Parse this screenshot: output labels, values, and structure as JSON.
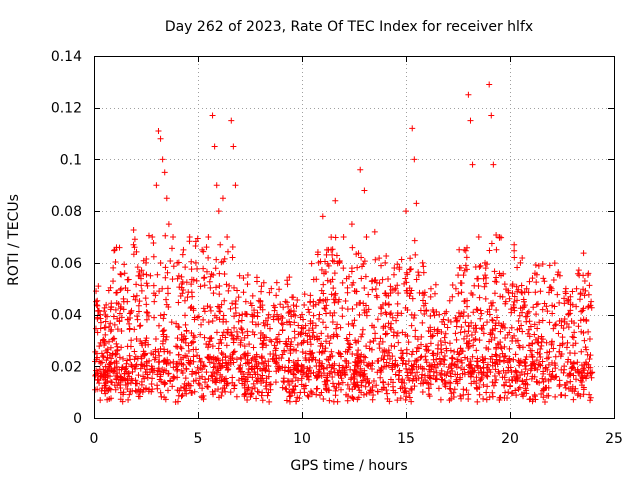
{
  "chart_data": {
    "type": "scatter",
    "title": "Day 262 of 2023, Rate Of TEC Index for receiver hlfx",
    "xlabel": "GPS time / hours",
    "ylabel": "ROTI / TECUs",
    "xlim": [
      0,
      25
    ],
    "ylim": [
      0,
      0.14
    ],
    "x_ticks": [
      0,
      5,
      10,
      15,
      20,
      25
    ],
    "x_tick_labels": [
      "0",
      "5",
      "10",
      "15",
      "20",
      "25"
    ],
    "y_ticks": [
      0,
      0.02,
      0.04,
      0.06,
      0.08,
      0.1,
      0.12,
      0.14
    ],
    "y_tick_labels": [
      "0",
      "0.02",
      "0.04",
      "0.06",
      "0.08",
      "0.1",
      "0.12",
      "0.14"
    ],
    "grid": true,
    "marker": "+",
    "color": "#ff0000",
    "series": [
      {
        "name": "ROTI",
        "x": [
          0.1,
          0.3,
          0.5,
          0.8,
          1.0,
          1.3,
          1.6,
          1.9,
          2.2,
          2.5,
          2.8,
          3.0,
          3.1,
          3.2,
          3.3,
          3.4,
          3.5,
          3.6,
          3.8,
          4.0,
          4.3,
          4.6,
          4.9,
          5.2,
          5.5,
          5.7,
          5.8,
          5.9,
          6.0,
          6.2,
          6.4,
          6.6,
          6.7,
          6.8,
          7.0,
          7.3,
          7.6,
          8.0,
          8.4,
          8.8,
          9.2,
          9.6,
          10.0,
          10.4,
          10.8,
          11.0,
          11.2,
          11.6,
          11.8,
          12.0,
          12.4,
          12.8,
          13.0,
          13.1,
          13.5,
          14.0,
          14.5,
          15.0,
          15.3,
          15.4,
          15.5,
          15.8,
          16.2,
          16.6,
          17.0,
          17.4,
          17.8,
          18.0,
          18.1,
          18.2,
          18.5,
          18.8,
          19.0,
          19.1,
          19.2,
          19.5,
          19.8,
          20.2,
          20.5,
          20.8,
          21.2,
          21.6,
          22.0,
          22.4,
          22.8,
          23.2,
          23.6,
          23.9
        ],
        "y": [
          0.045,
          0.04,
          0.035,
          0.042,
          0.065,
          0.05,
          0.045,
          0.067,
          0.055,
          0.06,
          0.07,
          0.09,
          0.111,
          0.108,
          0.1,
          0.095,
          0.085,
          0.075,
          0.07,
          0.06,
          0.065,
          0.07,
          0.06,
          0.065,
          0.07,
          0.117,
          0.105,
          0.09,
          0.08,
          0.085,
          0.07,
          0.115,
          0.105,
          0.09,
          0.055,
          0.045,
          0.04,
          0.045,
          0.04,
          0.04,
          0.045,
          0.04,
          0.04,
          0.045,
          0.06,
          0.078,
          0.065,
          0.084,
          0.06,
          0.07,
          0.075,
          0.096,
          0.088,
          0.07,
          0.072,
          0.06,
          0.05,
          0.08,
          0.112,
          0.1,
          0.083,
          0.06,
          0.05,
          0.04,
          0.035,
          0.05,
          0.065,
          0.125,
          0.115,
          0.098,
          0.07,
          0.06,
          0.129,
          0.117,
          0.098,
          0.07,
          0.045,
          0.067,
          0.06,
          0.05,
          0.056,
          0.054,
          0.05,
          0.055,
          0.04,
          0.05,
          0.053,
          0.045
        ]
      }
    ]
  }
}
